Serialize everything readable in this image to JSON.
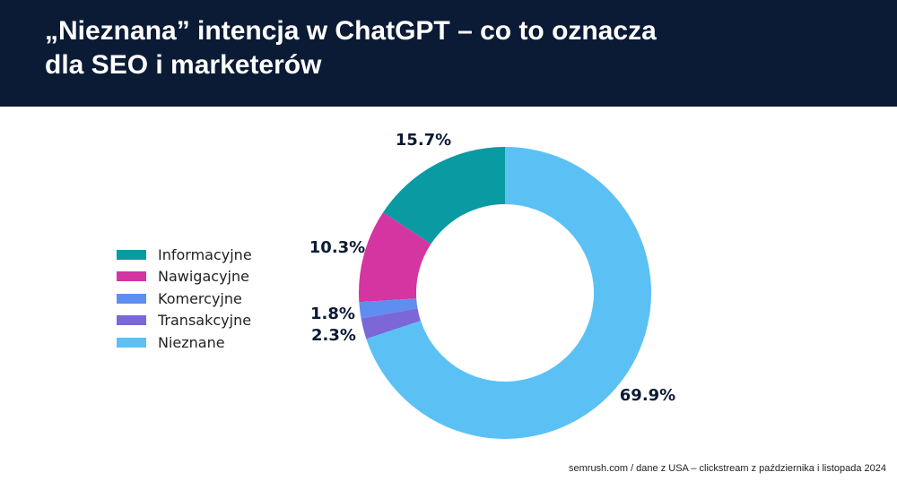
{
  "header": {
    "title_line1": "„Nieznana” intencja w ChatGPT – co to oznacza",
    "title_line2": "dla SEO i marketerów"
  },
  "chart_data": {
    "type": "pie",
    "donut": true,
    "categories": [
      "Informacyjne",
      "Nawigacyjne",
      "Komercyjne",
      "Transakcyjne",
      "Nieznane"
    ],
    "values": [
      15.7,
      10.3,
      1.8,
      2.3,
      69.9
    ],
    "labels": [
      "15.7%",
      "10.3%",
      "1.8%",
      "2.3%",
      "69.9%"
    ],
    "colors": [
      "#0a9aa2",
      "#d435a1",
      "#5e8ef0",
      "#7b67d6",
      "#5bc1f5"
    ],
    "legend_position": "left"
  },
  "footer": {
    "source": "semrush.com / dane z USA – clickstream z października i listopada 2024"
  }
}
